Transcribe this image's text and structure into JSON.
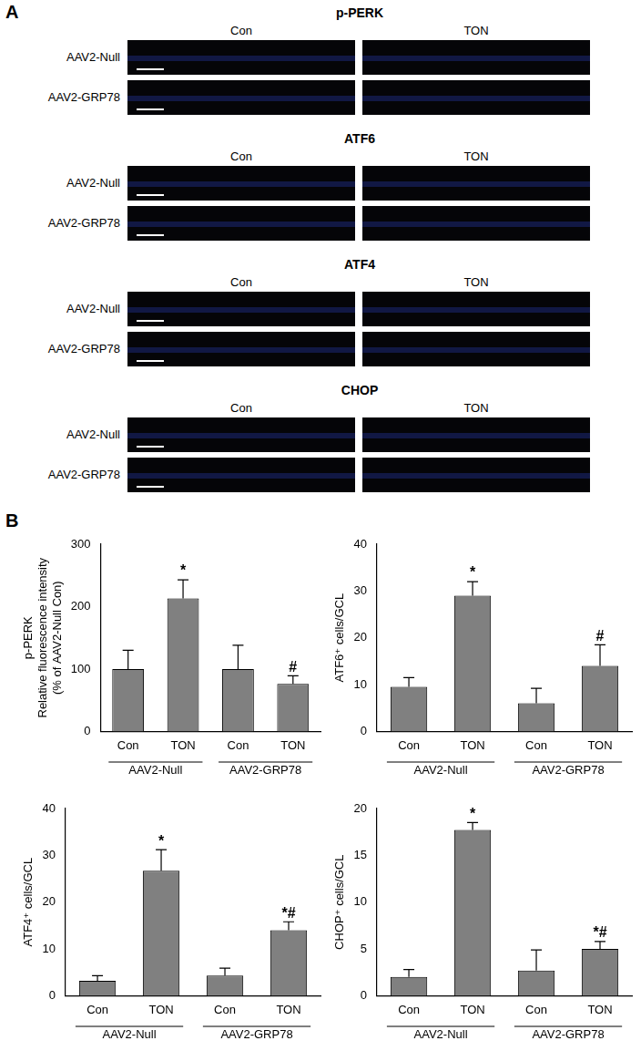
{
  "panel_a": {
    "label": "A",
    "images": [
      {
        "title": "p-PERK",
        "columns": [
          "Con",
          "TON"
        ],
        "rows": [
          "AAV2-Null",
          "AAV2-GRP78"
        ]
      },
      {
        "title": "ATF6",
        "columns": [
          "Con",
          "TON"
        ],
        "rows": [
          "AAV2-Null",
          "AAV2-GRP78"
        ]
      },
      {
        "title": "ATF4",
        "columns": [
          "Con",
          "TON"
        ],
        "rows": [
          "AAV2-Null",
          "AAV2-GRP78"
        ]
      },
      {
        "title": "CHOP",
        "columns": [
          "Con",
          "TON"
        ],
        "rows": [
          "AAV2-Null",
          "AAV2-GRP78"
        ]
      }
    ]
  },
  "panel_b": {
    "label": "B"
  },
  "chart_data": [
    {
      "type": "bar",
      "y_label": [
        "p-PERK",
        "Relative fluorescence intensity",
        "(% of AAV2-Null Con)"
      ],
      "categories": [
        "Con",
        "TON",
        "Con",
        "TON"
      ],
      "groups": [
        "AAV2-Null",
        "AAV2-GRP78"
      ],
      "values": [
        100,
        213,
        100,
        76
      ],
      "errors": [
        30,
        30,
        38,
        13
      ],
      "annotations": [
        null,
        "*",
        null,
        "#"
      ],
      "color": "#808080",
      "ylim": [
        0,
        300
      ],
      "yticks": [
        0,
        100,
        200,
        300
      ],
      "grid": false
    },
    {
      "type": "bar",
      "y_label": "ATF6⁺ cells/GCL",
      "categories": [
        "Con",
        "TON",
        "Con",
        "TON"
      ],
      "groups": [
        "AAV2-Null",
        "AAV2-GRP78"
      ],
      "values": [
        9.5,
        29,
        6,
        14
      ],
      "errors": [
        2,
        3,
        3.2,
        4.5
      ],
      "annotations": [
        null,
        "*",
        null,
        "#"
      ],
      "color": "#808080",
      "ylim": [
        0,
        40
      ],
      "yticks": [
        0,
        10,
        20,
        30,
        40
      ],
      "grid": false
    },
    {
      "type": "bar",
      "y_label": "ATF4⁺ cells/GCL",
      "categories": [
        "Con",
        "TON",
        "Con",
        "TON"
      ],
      "groups": [
        "AAV2-Null",
        "AAV2-GRP78"
      ],
      "values": [
        3.2,
        26.7,
        4.3,
        14
      ],
      "errors": [
        1.1,
        4.5,
        1.6,
        1.8
      ],
      "annotations": [
        null,
        "*",
        null,
        "*#"
      ],
      "color": "#808080",
      "ylim": [
        0,
        40
      ],
      "yticks": [
        0,
        10,
        20,
        30,
        40
      ],
      "grid": false
    },
    {
      "type": "bar",
      "y_label": "CHOP⁺ cells/GCL",
      "categories": [
        "Con",
        "TON",
        "Con",
        "TON"
      ],
      "groups": [
        "AAV2-Null",
        "AAV2-GRP78"
      ],
      "values": [
        2,
        17.7,
        2.7,
        5
      ],
      "errors": [
        0.8,
        0.8,
        2.2,
        0.8
      ],
      "annotations": [
        null,
        "*",
        null,
        "*#"
      ],
      "color": "#808080",
      "ylim": [
        0,
        20
      ],
      "yticks": [
        0,
        5,
        10,
        15,
        20
      ],
      "grid": false
    }
  ]
}
